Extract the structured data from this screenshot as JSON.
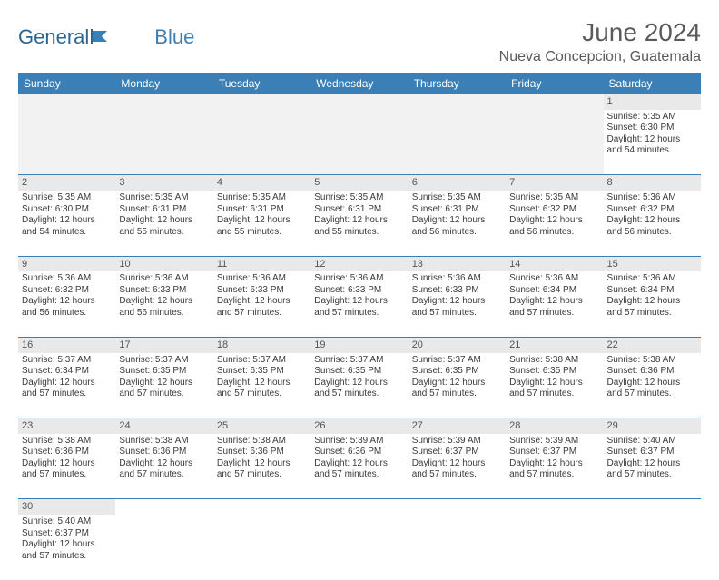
{
  "logo": {
    "text1": "General",
    "text2": "Blue"
  },
  "title": "June 2024",
  "location": "Nueva Concepcion, Guatemala",
  "colors": {
    "header_bg": "#3a7fb5",
    "header_text": "#ffffff",
    "daynum_bg": "#e9e9e9",
    "empty_bg": "#f2f2f2",
    "border": "#3a7fb5",
    "body_text": "#3a3a3a",
    "title_text": "#5a5a5a"
  },
  "typography": {
    "title_fontsize": 28,
    "location_fontsize": 16,
    "header_fontsize": 12,
    "daynum_fontsize": 11,
    "cell_fontsize": 10
  },
  "day_headers": [
    "Sunday",
    "Monday",
    "Tuesday",
    "Wednesday",
    "Thursday",
    "Friday",
    "Saturday"
  ],
  "weeks": [
    {
      "nums": [
        "",
        "",
        "",
        "",
        "",
        "",
        "1"
      ],
      "cells": [
        null,
        null,
        null,
        null,
        null,
        null,
        {
          "sunrise": "Sunrise: 5:35 AM",
          "sunset": "Sunset: 6:30 PM",
          "daylight1": "Daylight: 12 hours",
          "daylight2": "and 54 minutes."
        }
      ]
    },
    {
      "nums": [
        "2",
        "3",
        "4",
        "5",
        "6",
        "7",
        "8"
      ],
      "cells": [
        {
          "sunrise": "Sunrise: 5:35 AM",
          "sunset": "Sunset: 6:30 PM",
          "daylight1": "Daylight: 12 hours",
          "daylight2": "and 54 minutes."
        },
        {
          "sunrise": "Sunrise: 5:35 AM",
          "sunset": "Sunset: 6:31 PM",
          "daylight1": "Daylight: 12 hours",
          "daylight2": "and 55 minutes."
        },
        {
          "sunrise": "Sunrise: 5:35 AM",
          "sunset": "Sunset: 6:31 PM",
          "daylight1": "Daylight: 12 hours",
          "daylight2": "and 55 minutes."
        },
        {
          "sunrise": "Sunrise: 5:35 AM",
          "sunset": "Sunset: 6:31 PM",
          "daylight1": "Daylight: 12 hours",
          "daylight2": "and 55 minutes."
        },
        {
          "sunrise": "Sunrise: 5:35 AM",
          "sunset": "Sunset: 6:31 PM",
          "daylight1": "Daylight: 12 hours",
          "daylight2": "and 56 minutes."
        },
        {
          "sunrise": "Sunrise: 5:35 AM",
          "sunset": "Sunset: 6:32 PM",
          "daylight1": "Daylight: 12 hours",
          "daylight2": "and 56 minutes."
        },
        {
          "sunrise": "Sunrise: 5:36 AM",
          "sunset": "Sunset: 6:32 PM",
          "daylight1": "Daylight: 12 hours",
          "daylight2": "and 56 minutes."
        }
      ]
    },
    {
      "nums": [
        "9",
        "10",
        "11",
        "12",
        "13",
        "14",
        "15"
      ],
      "cells": [
        {
          "sunrise": "Sunrise: 5:36 AM",
          "sunset": "Sunset: 6:32 PM",
          "daylight1": "Daylight: 12 hours",
          "daylight2": "and 56 minutes."
        },
        {
          "sunrise": "Sunrise: 5:36 AM",
          "sunset": "Sunset: 6:33 PM",
          "daylight1": "Daylight: 12 hours",
          "daylight2": "and 56 minutes."
        },
        {
          "sunrise": "Sunrise: 5:36 AM",
          "sunset": "Sunset: 6:33 PM",
          "daylight1": "Daylight: 12 hours",
          "daylight2": "and 57 minutes."
        },
        {
          "sunrise": "Sunrise: 5:36 AM",
          "sunset": "Sunset: 6:33 PM",
          "daylight1": "Daylight: 12 hours",
          "daylight2": "and 57 minutes."
        },
        {
          "sunrise": "Sunrise: 5:36 AM",
          "sunset": "Sunset: 6:33 PM",
          "daylight1": "Daylight: 12 hours",
          "daylight2": "and 57 minutes."
        },
        {
          "sunrise": "Sunrise: 5:36 AM",
          "sunset": "Sunset: 6:34 PM",
          "daylight1": "Daylight: 12 hours",
          "daylight2": "and 57 minutes."
        },
        {
          "sunrise": "Sunrise: 5:36 AM",
          "sunset": "Sunset: 6:34 PM",
          "daylight1": "Daylight: 12 hours",
          "daylight2": "and 57 minutes."
        }
      ]
    },
    {
      "nums": [
        "16",
        "17",
        "18",
        "19",
        "20",
        "21",
        "22"
      ],
      "cells": [
        {
          "sunrise": "Sunrise: 5:37 AM",
          "sunset": "Sunset: 6:34 PM",
          "daylight1": "Daylight: 12 hours",
          "daylight2": "and 57 minutes."
        },
        {
          "sunrise": "Sunrise: 5:37 AM",
          "sunset": "Sunset: 6:35 PM",
          "daylight1": "Daylight: 12 hours",
          "daylight2": "and 57 minutes."
        },
        {
          "sunrise": "Sunrise: 5:37 AM",
          "sunset": "Sunset: 6:35 PM",
          "daylight1": "Daylight: 12 hours",
          "daylight2": "and 57 minutes."
        },
        {
          "sunrise": "Sunrise: 5:37 AM",
          "sunset": "Sunset: 6:35 PM",
          "daylight1": "Daylight: 12 hours",
          "daylight2": "and 57 minutes."
        },
        {
          "sunrise": "Sunrise: 5:37 AM",
          "sunset": "Sunset: 6:35 PM",
          "daylight1": "Daylight: 12 hours",
          "daylight2": "and 57 minutes."
        },
        {
          "sunrise": "Sunrise: 5:38 AM",
          "sunset": "Sunset: 6:35 PM",
          "daylight1": "Daylight: 12 hours",
          "daylight2": "and 57 minutes."
        },
        {
          "sunrise": "Sunrise: 5:38 AM",
          "sunset": "Sunset: 6:36 PM",
          "daylight1": "Daylight: 12 hours",
          "daylight2": "and 57 minutes."
        }
      ]
    },
    {
      "nums": [
        "23",
        "24",
        "25",
        "26",
        "27",
        "28",
        "29"
      ],
      "cells": [
        {
          "sunrise": "Sunrise: 5:38 AM",
          "sunset": "Sunset: 6:36 PM",
          "daylight1": "Daylight: 12 hours",
          "daylight2": "and 57 minutes."
        },
        {
          "sunrise": "Sunrise: 5:38 AM",
          "sunset": "Sunset: 6:36 PM",
          "daylight1": "Daylight: 12 hours",
          "daylight2": "and 57 minutes."
        },
        {
          "sunrise": "Sunrise: 5:38 AM",
          "sunset": "Sunset: 6:36 PM",
          "daylight1": "Daylight: 12 hours",
          "daylight2": "and 57 minutes."
        },
        {
          "sunrise": "Sunrise: 5:39 AM",
          "sunset": "Sunset: 6:36 PM",
          "daylight1": "Daylight: 12 hours",
          "daylight2": "and 57 minutes."
        },
        {
          "sunrise": "Sunrise: 5:39 AM",
          "sunset": "Sunset: 6:37 PM",
          "daylight1": "Daylight: 12 hours",
          "daylight2": "and 57 minutes."
        },
        {
          "sunrise": "Sunrise: 5:39 AM",
          "sunset": "Sunset: 6:37 PM",
          "daylight1": "Daylight: 12 hours",
          "daylight2": "and 57 minutes."
        },
        {
          "sunrise": "Sunrise: 5:40 AM",
          "sunset": "Sunset: 6:37 PM",
          "daylight1": "Daylight: 12 hours",
          "daylight2": "and 57 minutes."
        }
      ]
    },
    {
      "nums": [
        "30",
        "",
        "",
        "",
        "",
        "",
        ""
      ],
      "cells": [
        {
          "sunrise": "Sunrise: 5:40 AM",
          "sunset": "Sunset: 6:37 PM",
          "daylight1": "Daylight: 12 hours",
          "daylight2": "and 57 minutes."
        },
        null,
        null,
        null,
        null,
        null,
        null
      ]
    }
  ]
}
